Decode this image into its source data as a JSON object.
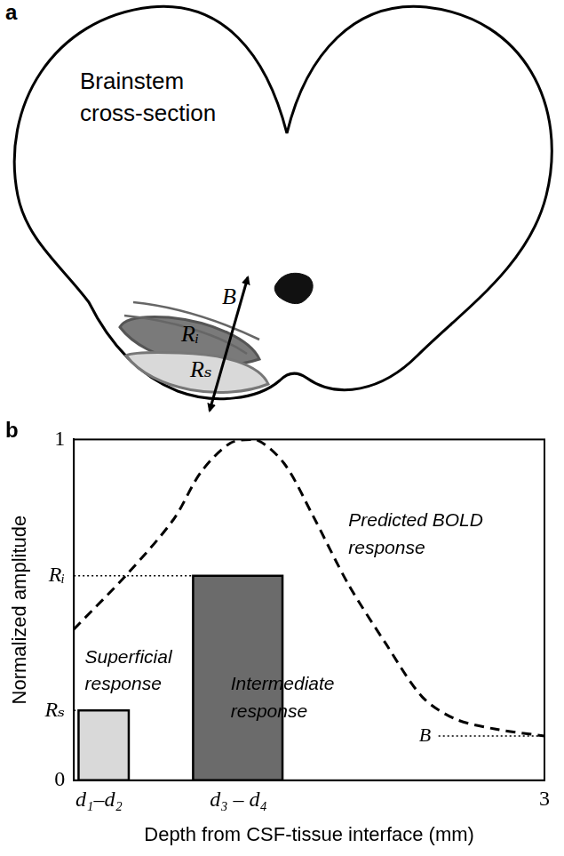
{
  "panels": [
    {
      "letter": "a",
      "title": "Brainstem cross-section",
      "labels": [
        "B",
        "Rᵢ",
        "Rₛ"
      ]
    }
  ],
  "chart_data": {
    "letter": "b",
    "type": "bar",
    "x_label": "Depth from CSF-tissue interface (mm)",
    "y_label": "Normalized amplitude",
    "xlim": [
      0,
      3
    ],
    "xticks": [
      {
        "value": 0.16,
        "label": "d₁–d₂"
      },
      {
        "value": 1.05,
        "label": "d₃ – d₄"
      },
      3
    ],
    "ylim": [
      0,
      1
    ],
    "yticks": [
      0,
      {
        "value": 0.205,
        "label": "Rₛ"
      },
      {
        "value": 0.6,
        "label": "Rᵢ"
      },
      1
    ],
    "grid": false,
    "series": [
      {
        "name": "Superficial response",
        "type": "bar",
        "color": "#d9d9d9",
        "bins": [
          0.03,
          0.35
        ],
        "values": [
          0.205
        ]
      },
      {
        "name": "Intermediate response",
        "type": "bar",
        "color": "#6b6b6b",
        "bins": [
          0.76,
          1.33
        ],
        "values": [
          0.6
        ]
      },
      {
        "name": "Predicted BOLD response",
        "type": "line",
        "line_style": "dashed",
        "color": "#000000",
        "x": [
          0,
          0.34,
          0.635,
          0.81,
          1.0,
          1.16,
          1.34,
          1.52,
          1.75,
          1.99,
          2.22,
          2.43,
          2.69,
          3.0
        ],
        "values": [
          0.443,
          0.605,
          0.765,
          0.904,
          0.99,
          1.0,
          0.93,
          0.78,
          0.575,
          0.4,
          0.245,
          0.18,
          0.15,
          0.13
        ]
      }
    ],
    "annotations": [
      {
        "text": "B",
        "value": 0.13
      }
    ]
  }
}
